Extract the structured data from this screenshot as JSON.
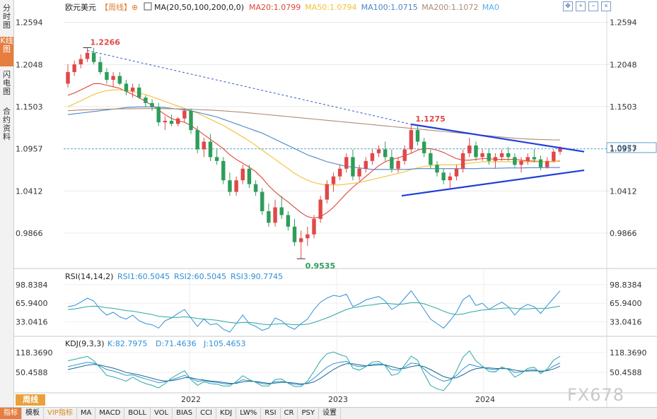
{
  "left_tabs": [
    {
      "label": "分时图",
      "active": false
    },
    {
      "label": "K线图",
      "active": true
    },
    {
      "label": "闪电图",
      "active": false
    },
    {
      "label": "合约资料",
      "active": false
    }
  ],
  "header": {
    "symbol": "欧元美元",
    "period_tag": "【周线】",
    "ma_label": "MA(20,50,100,200,0,0)",
    "ma_values": [
      {
        "label": "MA20:1.0799",
        "color": "#e0443a"
      },
      {
        "label": "MA50:1.0794",
        "color": "#f2c037"
      },
      {
        "label": "MA100:1.0715",
        "color": "#4d86c4"
      },
      {
        "label": "MA200:1.1072",
        "color": "#b08a78"
      },
      {
        "label": "MA0",
        "color": "#4fb3e8"
      }
    ]
  },
  "toolbar_icons": [
    "crosshair-icon",
    "zoom-in-icon",
    "zoom-out-icon",
    "close-icon"
  ],
  "chart_data": {
    "type": "candlestick",
    "y_ticks": [
      "1.2594",
      "1.2048",
      "1.1503",
      "1.0957",
      "1.0412",
      "0.9866"
    ],
    "y_tick_values": [
      1.2594,
      1.2048,
      1.1503,
      1.0957,
      1.0412,
      0.9866
    ],
    "ylim": [
      0.95,
      1.27
    ],
    "x_labels": [
      "2022",
      "2023",
      "2024"
    ],
    "candles": [
      [
        1.18,
        1.205,
        1.175,
        1.195
      ],
      [
        1.195,
        1.21,
        1.19,
        1.205
      ],
      [
        1.205,
        1.218,
        1.2,
        1.212
      ],
      [
        1.212,
        1.2266,
        1.208,
        1.22
      ],
      [
        1.22,
        1.2266,
        1.205,
        1.208
      ],
      [
        1.208,
        1.215,
        1.192,
        1.195
      ],
      [
        1.195,
        1.2,
        1.18,
        1.185
      ],
      [
        1.185,
        1.195,
        1.176,
        1.19
      ],
      [
        1.19,
        1.195,
        1.178,
        1.18
      ],
      [
        1.18,
        1.185,
        1.165,
        1.17
      ],
      [
        1.17,
        1.18,
        1.162,
        1.175
      ],
      [
        1.175,
        1.18,
        1.16,
        1.162
      ],
      [
        1.162,
        1.165,
        1.15,
        1.155
      ],
      [
        1.155,
        1.16,
        1.145,
        1.15
      ],
      [
        1.15,
        1.155,
        1.125,
        1.13
      ],
      [
        1.13,
        1.138,
        1.12,
        1.132
      ],
      [
        1.132,
        1.14,
        1.125,
        1.128
      ],
      [
        1.128,
        1.137,
        1.125,
        1.135
      ],
      [
        1.135,
        1.148,
        1.13,
        1.145
      ],
      [
        1.145,
        1.148,
        1.115,
        1.12
      ],
      [
        1.12,
        1.125,
        1.09,
        1.095
      ],
      [
        1.095,
        1.11,
        1.085,
        1.105
      ],
      [
        1.105,
        1.115,
        1.08,
        1.085
      ],
      [
        1.085,
        1.095,
        1.075,
        1.08
      ],
      [
        1.08,
        1.085,
        1.05,
        1.055
      ],
      [
        1.055,
        1.065,
        1.035,
        1.04
      ],
      [
        1.04,
        1.06,
        1.035,
        1.055
      ],
      [
        1.055,
        1.075,
        1.05,
        1.07
      ],
      [
        1.07,
        1.075,
        1.045,
        1.05
      ],
      [
        1.05,
        1.055,
        1.035,
        1.04
      ],
      [
        1.04,
        1.045,
        1.01,
        1.015
      ],
      [
        1.015,
        1.025,
        0.995,
        1.0
      ],
      [
        1.0,
        1.03,
        0.995,
        1.02
      ],
      [
        1.02,
        1.035,
        1.005,
        1.01
      ],
      [
        1.01,
        1.015,
        0.99,
        0.995
      ],
      [
        0.995,
        1.005,
        0.97,
        0.975
      ],
      [
        0.975,
        0.99,
        0.9535,
        0.98
      ],
      [
        0.98,
        0.995,
        0.97,
        0.985
      ],
      [
        0.985,
        1.01,
        0.98,
        1.005
      ],
      [
        1.005,
        1.035,
        1.0,
        1.03
      ],
      [
        1.03,
        1.055,
        1.025,
        1.05
      ],
      [
        1.05,
        1.065,
        1.04,
        1.06
      ],
      [
        1.06,
        1.075,
        1.055,
        1.07
      ],
      [
        1.07,
        1.09,
        1.065,
        1.085
      ],
      [
        1.085,
        1.095,
        1.055,
        1.06
      ],
      [
        1.06,
        1.075,
        1.055,
        1.07
      ],
      [
        1.07,
        1.085,
        1.065,
        1.08
      ],
      [
        1.08,
        1.095,
        1.075,
        1.09
      ],
      [
        1.09,
        1.1,
        1.085,
        1.095
      ],
      [
        1.095,
        1.105,
        1.08,
        1.085
      ],
      [
        1.085,
        1.095,
        1.065,
        1.07
      ],
      [
        1.07,
        1.085,
        1.065,
        1.08
      ],
      [
        1.08,
        1.1,
        1.075,
        1.095
      ],
      [
        1.095,
        1.1275,
        1.09,
        1.12
      ],
      [
        1.12,
        1.125,
        1.1,
        1.105
      ],
      [
        1.105,
        1.11,
        1.085,
        1.09
      ],
      [
        1.09,
        1.095,
        1.07,
        1.075
      ],
      [
        1.075,
        1.08,
        1.06,
        1.065
      ],
      [
        1.065,
        1.07,
        1.05,
        1.055
      ],
      [
        1.055,
        1.065,
        1.045,
        1.06
      ],
      [
        1.06,
        1.075,
        1.055,
        1.07
      ],
      [
        1.07,
        1.095,
        1.065,
        1.09
      ],
      [
        1.09,
        1.11,
        1.085,
        1.1
      ],
      [
        1.1,
        1.105,
        1.08,
        1.085
      ],
      [
        1.085,
        1.095,
        1.08,
        1.09
      ],
      [
        1.09,
        1.095,
        1.075,
        1.08
      ],
      [
        1.08,
        1.09,
        1.07,
        1.085
      ],
      [
        1.085,
        1.095,
        1.08,
        1.09
      ],
      [
        1.09,
        1.098,
        1.08,
        1.085
      ],
      [
        1.085,
        1.09,
        1.072,
        1.075
      ],
      [
        1.075,
        1.085,
        1.065,
        1.08
      ],
      [
        1.08,
        1.09,
        1.075,
        1.085
      ],
      [
        1.085,
        1.095,
        1.078,
        1.082
      ],
      [
        1.082,
        1.087,
        1.068,
        1.072
      ],
      [
        1.072,
        1.085,
        1.07,
        1.08
      ],
      [
        1.08,
        1.095,
        1.078,
        1.092
      ],
      [
        1.092,
        1.099,
        1.088,
        1.0973
      ]
    ],
    "ma_series_points": {
      "MA20": [
        1.165,
        1.168,
        1.172,
        1.176,
        1.18,
        1.18,
        1.178,
        1.176,
        1.174,
        1.17,
        1.166,
        1.162,
        1.157,
        1.152,
        1.146,
        1.14,
        1.135,
        1.132,
        1.13,
        1.126,
        1.12,
        1.114,
        1.108,
        1.102,
        1.096,
        1.088,
        1.082,
        1.077,
        1.072,
        1.066,
        1.058,
        1.048,
        1.04,
        1.033,
        1.027,
        1.02,
        1.013,
        1.008,
        1.006,
        1.008,
        1.013,
        1.02,
        1.029,
        1.038,
        1.046,
        1.053,
        1.06,
        1.067,
        1.074,
        1.079,
        1.082,
        1.084,
        1.087,
        1.09,
        1.094,
        1.096,
        1.096,
        1.094,
        1.091,
        1.087,
        1.083,
        1.081,
        1.081,
        1.082,
        1.083,
        1.083,
        1.082,
        1.082,
        1.082,
        1.082,
        1.081,
        1.08,
        1.08,
        1.079,
        1.079,
        1.0795,
        1.0799
      ],
      "MA50": [
        1.15,
        1.154,
        1.158,
        1.162,
        1.166,
        1.169,
        1.171,
        1.172,
        1.172,
        1.171,
        1.17,
        1.168,
        1.166,
        1.163,
        1.16,
        1.157,
        1.154,
        1.151,
        1.148,
        1.145,
        1.142,
        1.138,
        1.134,
        1.13,
        1.126,
        1.121,
        1.116,
        1.111,
        1.106,
        1.1,
        1.094,
        1.088,
        1.082,
        1.076,
        1.07,
        1.064,
        1.059,
        1.055,
        1.052,
        1.05,
        1.049,
        1.049,
        1.049,
        1.05,
        1.051,
        1.052,
        1.054,
        1.056,
        1.058,
        1.06,
        1.062,
        1.064,
        1.066,
        1.069,
        1.071,
        1.073,
        1.074,
        1.075,
        1.075,
        1.075,
        1.075,
        1.076,
        1.077,
        1.078,
        1.079,
        1.079,
        1.079,
        1.079,
        1.079,
        1.079,
        1.079,
        1.079,
        1.079,
        1.079,
        1.079,
        1.0792,
        1.0794
      ],
      "MA100": [
        1.14,
        1.141,
        1.142,
        1.143,
        1.144,
        1.145,
        1.146,
        1.147,
        1.148,
        1.149,
        1.1495,
        1.15,
        1.15,
        1.15,
        1.1495,
        1.149,
        1.148,
        1.147,
        1.146,
        1.145,
        1.143,
        1.141,
        1.139,
        1.137,
        1.134,
        1.131,
        1.128,
        1.125,
        1.122,
        1.119,
        1.116,
        1.112,
        1.108,
        1.104,
        1.1,
        1.096,
        1.092,
        1.088,
        1.085,
        1.082,
        1.079,
        1.077,
        1.075,
        1.073,
        1.072,
        1.071,
        1.07,
        1.069,
        1.069,
        1.069,
        1.069,
        1.069,
        1.069,
        1.0695,
        1.07,
        1.07,
        1.07,
        1.07,
        1.07,
        1.07,
        1.07,
        1.07,
        1.07,
        1.07,
        1.0705,
        1.0705,
        1.0705,
        1.0708,
        1.071,
        1.071,
        1.071,
        1.0712,
        1.0712,
        1.0713,
        1.0714,
        1.0715,
        1.0715
      ],
      "MA200": [
        1.145,
        1.1455,
        1.146,
        1.1462,
        1.1465,
        1.1468,
        1.147,
        1.1472,
        1.1474,
        1.1475,
        1.1476,
        1.1477,
        1.1478,
        1.1478,
        1.1478,
        1.1477,
        1.1476,
        1.1474,
        1.1472,
        1.147,
        1.1466,
        1.1462,
        1.1458,
        1.1454,
        1.1448,
        1.1442,
        1.1436,
        1.143,
        1.1422,
        1.1414,
        1.1406,
        1.1398,
        1.139,
        1.1382,
        1.1374,
        1.1366,
        1.1358,
        1.135,
        1.1342,
        1.1334,
        1.1326,
        1.1318,
        1.131,
        1.1302,
        1.1294,
        1.1286,
        1.1278,
        1.127,
        1.1262,
        1.1254,
        1.1246,
        1.1238,
        1.123,
        1.1222,
        1.1214,
        1.1206,
        1.1198,
        1.119,
        1.1182,
        1.1174,
        1.1166,
        1.1158,
        1.115,
        1.1142,
        1.1134,
        1.1126,
        1.1118,
        1.111,
        1.1102,
        1.1094,
        1.1088,
        1.1084,
        1.108,
        1.1077,
        1.1075,
        1.1073,
        1.1072
      ]
    },
    "annotations": {
      "high1": "1.2266",
      "high2": "1.1275",
      "low": "0.9535",
      "last_price": "1.0973"
    },
    "trendlines": "descending resistance line (dashed, from 1.2266 high) merging into solid blue triangle resistance; solid blue ascending support line from 2023 lows",
    "rsi": {
      "label": "RSI(14,14,2)",
      "rsi1": "RSI1:60.5045",
      "rsi2": "RSI2:60.5045",
      "rsi3": "RSI3:90.7745",
      "y_ticks": [
        "98.8384",
        "65.9400",
        "33.0416"
      ],
      "y_tick_values": [
        98.8384,
        65.94,
        33.0416
      ],
      "ylim": [
        15,
        105
      ],
      "series_rsi": [
        60,
        62,
        68,
        75,
        70,
        55,
        45,
        50,
        42,
        38,
        45,
        35,
        30,
        28,
        22,
        35,
        40,
        48,
        55,
        40,
        25,
        38,
        28,
        30,
        20,
        15,
        30,
        45,
        30,
        25,
        18,
        22,
        40,
        35,
        25,
        20,
        30,
        38,
        55,
        68,
        75,
        80,
        78,
        82,
        60,
        65,
        72,
        75,
        78,
        70,
        55,
        62,
        75,
        88,
        72,
        55,
        38,
        30,
        22,
        35,
        50,
        72,
        80,
        62,
        66,
        55,
        62,
        68,
        60,
        45,
        58,
        64,
        60,
        48,
        62,
        75,
        88
      ],
      "series_sma": [
        55,
        56,
        58,
        60,
        61,
        60,
        58,
        57,
        55,
        53,
        52,
        50,
        48,
        46,
        43,
        42,
        41,
        41,
        42,
        41,
        39,
        38,
        37,
        36,
        34,
        32,
        31,
        32,
        32,
        31,
        29,
        28,
        29,
        30,
        29,
        28,
        28,
        29,
        32,
        36,
        40,
        45,
        50,
        55,
        58,
        60,
        62,
        63,
        65,
        66,
        65,
        64,
        65,
        67,
        67,
        65,
        61,
        57,
        52,
        48,
        46,
        47,
        50,
        52,
        54,
        55,
        56,
        57,
        58,
        57,
        56,
        56,
        57,
        57,
        57,
        59,
        61
      ]
    },
    "kdj": {
      "label": "KDJ(9,3,3)",
      "k": "K:82.7975",
      "d": "D:71.4636",
      "j": "J:105.4653",
      "y_ticks": [
        "118.3690",
        "50.4588"
      ],
      "y_tick_values": [
        118.369,
        50.4588
      ],
      "ylim": [
        -10,
        135
      ],
      "series_k": [
        70,
        75,
        80,
        85,
        82,
        72,
        60,
        55,
        48,
        40,
        42,
        35,
        28,
        22,
        15,
        18,
        25,
        32,
        40,
        30,
        20,
        22,
        18,
        16,
        12,
        10,
        15,
        25,
        22,
        18,
        12,
        10,
        18,
        20,
        15,
        10,
        8,
        15,
        30,
        50,
        68,
        80,
        85,
        88,
        75,
        70,
        72,
        78,
        80,
        75,
        60,
        58,
        68,
        82,
        80,
        62,
        42,
        30,
        20,
        25,
        40,
        62,
        78,
        72,
        68,
        62,
        60,
        65,
        62,
        50,
        52,
        58,
        60,
        52,
        58,
        72,
        82.8
      ],
      "series_d": [
        60,
        65,
        70,
        75,
        78,
        75,
        70,
        65,
        58,
        50,
        46,
        42,
        36,
        30,
        24,
        21,
        22,
        26,
        32,
        32,
        27,
        24,
        21,
        19,
        16,
        13,
        13,
        18,
        20,
        19,
        16,
        13,
        14,
        16,
        16,
        14,
        11,
        12,
        18,
        30,
        45,
        60,
        72,
        80,
        80,
        76,
        73,
        74,
        76,
        76,
        70,
        64,
        64,
        70,
        74,
        70,
        60,
        48,
        36,
        30,
        32,
        42,
        55,
        63,
        66,
        66,
        64,
        63,
        63,
        58,
        55,
        55,
        56,
        55,
        56,
        62,
        71.5
      ],
      "series_j": [
        90,
        95,
        100,
        105,
        90,
        66,
        40,
        35,
        28,
        20,
        34,
        21,
        12,
        6,
        -3,
        12,
        31,
        44,
        56,
        26,
        6,
        18,
        12,
        10,
        4,
        4,
        19,
        39,
        26,
        16,
        4,
        4,
        26,
        28,
        13,
        2,
        2,
        21,
        54,
        90,
        114,
        120,
        111,
        104,
        65,
        58,
        70,
        86,
        88,
        73,
        40,
        46,
        76,
        106,
        92,
        46,
        6,
        -6,
        -12,
        15,
        56,
        102,
        124,
        90,
        72,
        54,
        52,
        69,
        60,
        34,
        46,
        64,
        68,
        46,
        62,
        92,
        105.5
      ]
    }
  },
  "period_button": "周线",
  "bottom_tabs": [
    {
      "label": "指标",
      "active": true,
      "vip": false
    },
    {
      "label": "模板",
      "active": false,
      "vip": false
    },
    {
      "label": "VIP指标",
      "active": false,
      "vip": true
    },
    {
      "label": "MA",
      "active": false,
      "vip": false
    },
    {
      "label": "MACD",
      "active": false,
      "vip": false
    },
    {
      "label": "BOLL",
      "active": false,
      "vip": false
    },
    {
      "label": "VOL",
      "active": false,
      "vip": false
    },
    {
      "label": "BIAS",
      "active": false,
      "vip": false
    },
    {
      "label": "CCI",
      "active": false,
      "vip": false
    },
    {
      "label": "KDJ",
      "active": false,
      "vip": false
    },
    {
      "label": "LW%",
      "active": false,
      "vip": false
    },
    {
      "label": "RSI",
      "active": false,
      "vip": false
    },
    {
      "label": "CR",
      "active": false,
      "vip": false
    },
    {
      "label": "PSY",
      "active": false,
      "vip": false
    },
    {
      "label": "设置",
      "active": false,
      "vip": false
    }
  ],
  "watermark": "FX678"
}
